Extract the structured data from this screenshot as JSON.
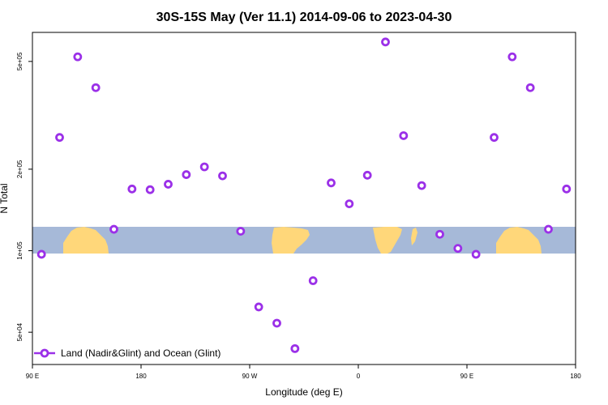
{
  "chart_data": {
    "type": "scatter",
    "title": "30S-15S May (Ver 11.1)   2014-09-06 to 2023-04-30",
    "xlabel": "Longitude (deg E)",
    "ylabel": "N Total",
    "x_scale": "linear",
    "y_scale": "log",
    "xlim": [
      90,
      540
    ],
    "ylim": [
      38000,
      640000
    ],
    "x_ticks": [
      {
        "value": 90,
        "label": "90 E"
      },
      {
        "value": 180,
        "label": "180"
      },
      {
        "value": 270,
        "label": "90 W"
      },
      {
        "value": 360,
        "label": "0"
      },
      {
        "value": 450,
        "label": "90 E"
      },
      {
        "value": 540,
        "label": "180"
      }
    ],
    "y_ticks": [
      {
        "value": 50000,
        "label": "5e+04"
      },
      {
        "value": 100000,
        "label": "1e+05"
      },
      {
        "value": 200000,
        "label": "2e+05"
      },
      {
        "value": 500000,
        "label": "5e+05"
      }
    ],
    "grid": false,
    "legend_position": "bottom-left",
    "series": [
      {
        "name": "Land (Nadir&Glint) and Ocean (Glint)",
        "color": "#9b30e8",
        "marker": "open-circle",
        "x": [
          97.5,
          112.5,
          127.5,
          142.5,
          157.5,
          172.5,
          187.5,
          202.5,
          217.5,
          232.5,
          247.5,
          262.5,
          277.5,
          292.5,
          307.5,
          322.5,
          337.5,
          352.5,
          367.5,
          382.5,
          397.5,
          412.5,
          427.5,
          442.5,
          457.5,
          472.5,
          487.5,
          502.5,
          517.5,
          532.5
        ],
        "y": [
          97000,
          262000,
          520000,
          400000,
          120000,
          169000,
          168000,
          176000,
          191000,
          204000,
          189000,
          118000,
          62000,
          54000,
          43500,
          77500,
          178000,
          149000,
          190000,
          590000,
          266000,
          174000,
          115000,
          102000,
          97000,
          262000,
          520000,
          400000,
          120000,
          169000
        ]
      }
    ]
  }
}
